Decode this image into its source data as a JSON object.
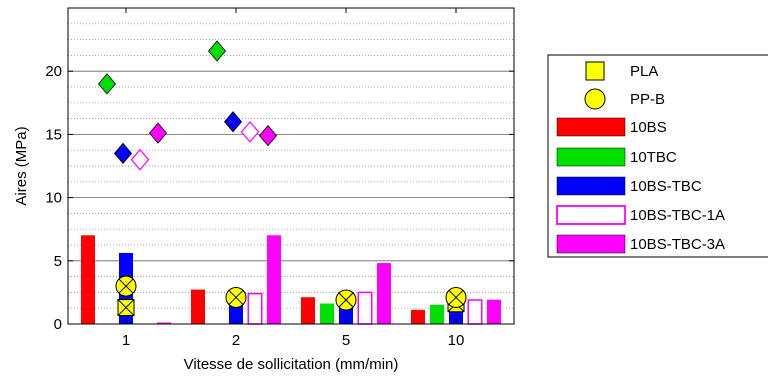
{
  "chart_data": {
    "type": "bar",
    "xlabel": "Vitesse de sollicitation (mm/min)",
    "ylabel": "Aires (MPa)",
    "ylim": [
      0,
      25
    ],
    "yticks": [
      0,
      5,
      10,
      15,
      20
    ],
    "categories": [
      "1",
      "2",
      "5",
      "10"
    ],
    "grid": "dotted horizontal",
    "legend_position": "right",
    "bar_series": [
      {
        "name": "10BS",
        "color": "#ff0000",
        "fill": "solid",
        "values": [
          7.0,
          2.7,
          2.1,
          1.1
        ]
      },
      {
        "name": "10TBC",
        "color": "#00e000",
        "fill": "solid",
        "values": [
          0,
          0,
          1.6,
          1.5
        ]
      },
      {
        "name": "10BS-TBC",
        "color": "#0000ff",
        "fill": "solid",
        "values": [
          5.6,
          2.1,
          1.9,
          1.7
        ]
      },
      {
        "name": "10BS-TBC-1A",
        "color": "#ff00ff",
        "fill": "hollow",
        "values": [
          0,
          2.4,
          2.5,
          1.9
        ]
      },
      {
        "name": "10BS-TBC-3A",
        "color": "#ff00ff",
        "fill": "solid",
        "values": [
          0.1,
          7.0,
          4.8,
          1.9
        ]
      }
    ],
    "marker_series": [
      {
        "name": "PLA",
        "marker": "square-x",
        "color": "#ffff00",
        "values": [
          1.3,
          null,
          null,
          1.6
        ]
      },
      {
        "name": "PP-B",
        "marker": "circle-x",
        "color": "#ffff00",
        "values": [
          3.0,
          2.1,
          1.9,
          2.1
        ]
      },
      {
        "name": "10TBC",
        "marker": "diamond",
        "color": "#00e000",
        "fill": "solid",
        "values": [
          19.0,
          21.6,
          null,
          null
        ]
      },
      {
        "name": "10BS-TBC",
        "marker": "diamond",
        "color": "#0000ff",
        "fill": "solid",
        "values": [
          13.5,
          16.0,
          null,
          null
        ]
      },
      {
        "name": "10BS-TBC-1A",
        "marker": "diamond",
        "color": "#ff00ff",
        "fill": "hollow",
        "values": [
          13.0,
          15.2,
          null,
          null
        ]
      },
      {
        "name": "10BS-TBC-3A",
        "marker": "diamond",
        "color": "#ff00ff",
        "fill": "solid",
        "values": [
          15.1,
          14.9,
          null,
          null
        ]
      }
    ],
    "legend": [
      {
        "label": "PLA",
        "swatch": "square-marker",
        "color": "#ffff00"
      },
      {
        "label": "PP-B",
        "swatch": "circle-marker",
        "color": "#ffff00"
      },
      {
        "label": "10BS",
        "swatch": "bar",
        "color": "#ff0000",
        "fill": "solid"
      },
      {
        "label": "10TBC",
        "swatch": "bar",
        "color": "#00e000",
        "fill": "solid"
      },
      {
        "label": "10BS-TBC",
        "swatch": "bar",
        "color": "#0000ff",
        "fill": "solid"
      },
      {
        "label": "10BS-TBC-1A",
        "swatch": "bar",
        "color": "#ff00ff",
        "fill": "hollow"
      },
      {
        "label": "10BS-TBC-3A",
        "swatch": "bar",
        "color": "#ff00ff",
        "fill": "solid"
      }
    ]
  }
}
